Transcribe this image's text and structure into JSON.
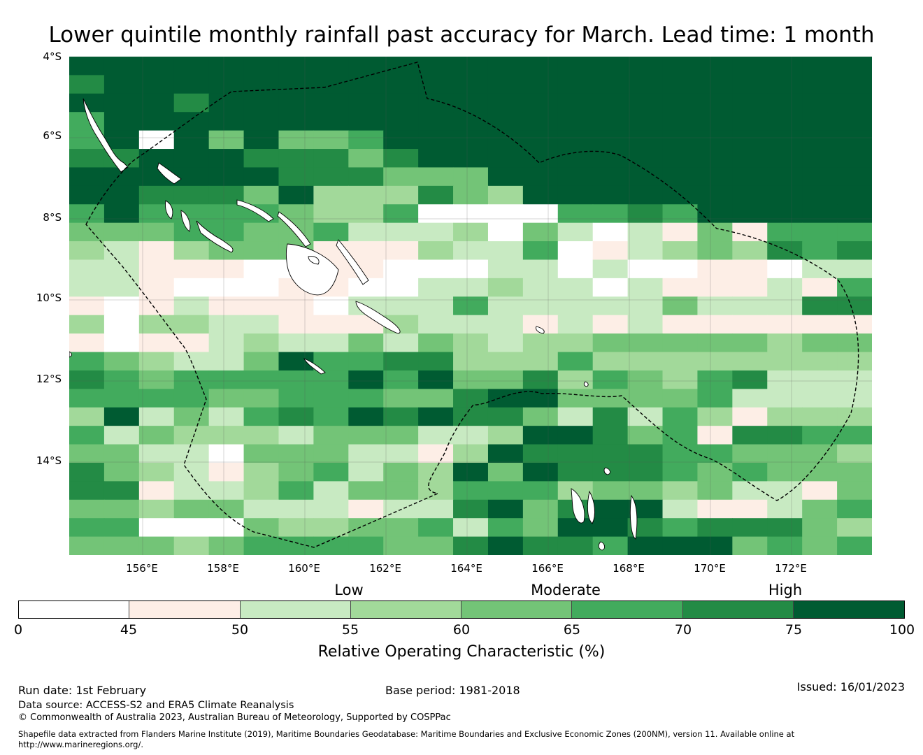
{
  "title": "Lower quintile monthly rainfall past accuracy for March. Lead time: 1 month",
  "map": {
    "lat_labels": [
      "4°S",
      "6°S",
      "8°S",
      "10°S",
      "12°S",
      "14°S"
    ],
    "lon_labels": [
      "156°E",
      "158°E",
      "160°E",
      "162°E",
      "164°E",
      "166°E",
      "168°E",
      "170°E",
      "172°E"
    ],
    "grid_rows": [
      "77777777777777777777777",
      "67777777777777777777777",
      "77767777777777777777777",
      "57777777777777777777777",
      "5707474457777777777777",
      "66777666467777777777777",
      "77777766644477777777777",
      "77666473336437777777777",
      "57555543350000556577777",
      "44455445222304202141555",
      "32134441113225012343656",
      "22111001100022020011022",
      "22100011002232202111215",
      "1012111022252222242226",
      "3033221113222121211111",
      "10112322424323344444344",
      "54322475566333533333333",
      "65455555757446354356222",
      "55554455544677444452222",
      "37242565767664262531333",
      "5243332444223776451665",
      "44220444221376666554443",
      "64321345243747666545444",
      "66122352443555344342214",
      "44344222122674677211245",
      "55000433445254776566643",
      "44434555544676657774545"
    ],
    "colors": [
      "#ffffff",
      "#fdeee6",
      "#c8eac2",
      "#a2d99a",
      "#73c477",
      "#42ab5d",
      "#238b45",
      "#005b32"
    ]
  },
  "legend": {
    "categories": [
      "Low",
      "Moderate",
      "High"
    ],
    "ticks": [
      "0",
      "45",
      "50",
      "55",
      "60",
      "65",
      "70",
      "75",
      "100"
    ],
    "label": "Relative Operating Characteristic (%)"
  },
  "footer": {
    "run_date": "Run date: 1st February",
    "base_period": "Base period: 1981-2018",
    "issued": "Issued: 16/01/2023",
    "data_source": "Data source: ACCESS-S2 and ERA5 Climate Reanalysis",
    "copyright": "© Commonwealth of Australia 2023, Australian Bureau of Meteorology, Supported by COSPPac",
    "shapefile": "Shapefile data extracted from Flanders Marine Institute (2019), Maritime Boundaries Geodatabase: Maritime Boundaries and Exclusive Economic Zones (200NM), version 11. Available online at",
    "url": "http://www.marineregions.org/."
  }
}
